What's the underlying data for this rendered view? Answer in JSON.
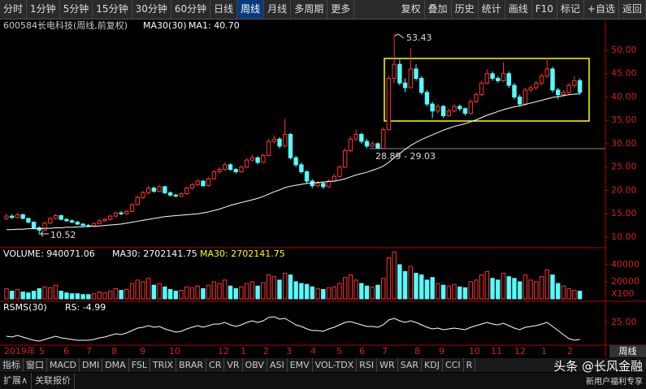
{
  "toolbar": {
    "left": [
      "分时",
      "1分钟",
      "5分钟",
      "15分钟",
      "30分钟",
      "60分钟",
      "日线",
      "周线",
      "月线",
      "多周期",
      "更多"
    ],
    "right": [
      "复权",
      "叠加",
      "历史",
      "统计",
      "画线",
      "F10",
      "标记",
      "+自选",
      "返回"
    ]
  },
  "header": {
    "code": "600584",
    "name": "长电科技(周线,前复权)",
    "ma_label": "MA30(30)",
    "ma1": "MA1: 40.70"
  },
  "price": {
    "ylim": [
      6,
      54.6
    ],
    "yticks": [
      {
        "value": 50,
        "label": "50.00"
      },
      {
        "value": 45,
        "label": "45.00"
      },
      {
        "value": 40,
        "label": "40.00"
      },
      {
        "value": 35,
        "label": "35.00"
      },
      {
        "value": 30,
        "label": "30.00"
      },
      {
        "value": 25,
        "label": "25.00"
      },
      {
        "value": 20,
        "label": "20.00"
      },
      {
        "value": 15,
        "label": "15.00"
      },
      {
        "value": 10,
        "label": "10.00"
      }
    ],
    "candles": [
      [
        14.0,
        15.0,
        13.6,
        14.5
      ],
      [
        14.5,
        14.9,
        13.9,
        14.2
      ],
      [
        14.2,
        15.2,
        14.0,
        14.8
      ],
      [
        14.8,
        15.0,
        13.8,
        14.0
      ],
      [
        14.0,
        14.2,
        13.0,
        13.2
      ],
      [
        13.2,
        13.4,
        11.8,
        12.0
      ],
      [
        12.0,
        12.3,
        10.52,
        11.5
      ],
      [
        11.5,
        13.3,
        11.3,
        13.0
      ],
      [
        13.0,
        14.3,
        12.8,
        14.0
      ],
      [
        14.0,
        15.0,
        13.8,
        14.6
      ],
      [
        14.6,
        14.8,
        13.6,
        13.8
      ],
      [
        13.8,
        14.1,
        13.3,
        13.5
      ],
      [
        13.5,
        13.8,
        13.0,
        13.2
      ],
      [
        13.2,
        13.5,
        12.6,
        12.8
      ],
      [
        12.8,
        13.0,
        12.3,
        12.5
      ],
      [
        12.5,
        12.8,
        12.1,
        12.4
      ],
      [
        12.4,
        13.1,
        12.2,
        12.9
      ],
      [
        12.9,
        13.8,
        12.7,
        13.5
      ],
      [
        13.5,
        14.1,
        13.3,
        13.8
      ],
      [
        13.8,
        14.8,
        13.6,
        14.5
      ],
      [
        14.5,
        15.5,
        14.3,
        15.2
      ],
      [
        15.2,
        15.6,
        14.7,
        15.0
      ],
      [
        15.0,
        15.9,
        14.8,
        15.5
      ],
      [
        15.5,
        17.2,
        15.3,
        17.0
      ],
      [
        17.0,
        18.9,
        16.8,
        18.5
      ],
      [
        18.5,
        19.9,
        18.2,
        19.5
      ],
      [
        19.5,
        21.0,
        19.2,
        20.5
      ],
      [
        20.5,
        20.8,
        19.5,
        19.8
      ],
      [
        19.8,
        21.2,
        19.6,
        20.8
      ],
      [
        20.8,
        21.0,
        19.2,
        19.5
      ],
      [
        19.5,
        19.8,
        18.7,
        19.0
      ],
      [
        19.0,
        19.3,
        18.5,
        18.8
      ],
      [
        18.8,
        19.6,
        18.6,
        19.3
      ],
      [
        19.3,
        20.8,
        19.1,
        20.5
      ],
      [
        20.5,
        21.6,
        20.2,
        21.2
      ],
      [
        21.2,
        22.4,
        21.0,
        22.0
      ],
      [
        22.0,
        22.2,
        20.8,
        21.0
      ],
      [
        21.0,
        22.9,
        20.8,
        22.5
      ],
      [
        22.5,
        24.3,
        22.3,
        24.0
      ],
      [
        24.0,
        25.0,
        23.6,
        24.5
      ],
      [
        24.5,
        26.0,
        24.2,
        25.5
      ],
      [
        25.5,
        25.8,
        24.2,
        24.5
      ],
      [
        24.5,
        24.8,
        23.6,
        24.0
      ],
      [
        24.0,
        25.3,
        23.8,
        25.0
      ],
      [
        25.0,
        26.9,
        24.8,
        26.5
      ],
      [
        26.5,
        27.6,
        26.2,
        27.0
      ],
      [
        27.0,
        27.3,
        25.6,
        26.0
      ],
      [
        26.0,
        27.9,
        25.8,
        27.5
      ],
      [
        27.5,
        31.0,
        27.3,
        30.5
      ],
      [
        30.5,
        31.8,
        30.0,
        31.0
      ],
      [
        31.0,
        31.4,
        29.0,
        29.5
      ],
      [
        29.5,
        35.3,
        29.2,
        32.0
      ],
      [
        32.0,
        32.3,
        26.6,
        27.0
      ],
      [
        27.0,
        27.4,
        25.0,
        25.5
      ],
      [
        25.5,
        26.0,
        23.6,
        24.0
      ],
      [
        24.0,
        24.3,
        21.5,
        22.0
      ],
      [
        22.0,
        22.4,
        20.5,
        21.0
      ],
      [
        21.0,
        22.0,
        20.6,
        21.5
      ],
      [
        21.5,
        21.8,
        20.3,
        20.8
      ],
      [
        20.8,
        22.4,
        20.6,
        22.0
      ],
      [
        22.0,
        23.5,
        21.8,
        23.0
      ],
      [
        23.0,
        25.4,
        22.8,
        25.0
      ],
      [
        25.0,
        29.0,
        24.8,
        28.5
      ],
      [
        28.5,
        31.6,
        28.2,
        31.0
      ],
      [
        31.0,
        33.0,
        30.5,
        32.0
      ],
      [
        32.0,
        32.4,
        30.0,
        30.5
      ],
      [
        30.5,
        31.0,
        29.0,
        29.5
      ],
      [
        29.5,
        30.6,
        29.2,
        30.0
      ],
      [
        30.0,
        30.3,
        28.89,
        29.03
      ],
      [
        29.03,
        33.5,
        29.0,
        33.0
      ],
      [
        33.0,
        44.5,
        32.8,
        44.0
      ],
      [
        44.0,
        53.43,
        43.0,
        47.0
      ],
      [
        47.0,
        48.0,
        42.5,
        43.0
      ],
      [
        43.0,
        44.0,
        41.0,
        42.0
      ],
      [
        42.0,
        50.5,
        41.8,
        46.0
      ],
      [
        46.0,
        47.0,
        43.5,
        44.0
      ],
      [
        44.0,
        44.5,
        40.5,
        41.0
      ],
      [
        41.0,
        41.5,
        38.0,
        38.5
      ],
      [
        38.5,
        39.0,
        35.5,
        37.0
      ],
      [
        37.0,
        38.5,
        36.5,
        38.0
      ],
      [
        38.0,
        38.3,
        35.5,
        36.0
      ],
      [
        36.0,
        37.5,
        35.8,
        37.0
      ],
      [
        37.0,
        38.5,
        36.7,
        38.0
      ],
      [
        38.0,
        38.4,
        37.0,
        37.5
      ],
      [
        37.5,
        37.8,
        36.0,
        36.5
      ],
      [
        36.5,
        39.5,
        36.3,
        39.0
      ],
      [
        39.0,
        41.0,
        38.7,
        40.5
      ],
      [
        40.5,
        43.5,
        40.2,
        43.0
      ],
      [
        43.0,
        46.0,
        42.7,
        45.0
      ],
      [
        45.0,
        45.5,
        43.5,
        44.0
      ],
      [
        44.0,
        44.5,
        43.0,
        43.5
      ],
      [
        43.5,
        47.5,
        43.2,
        45.0
      ],
      [
        45.0,
        45.5,
        42.0,
        42.5
      ],
      [
        42.5,
        43.0,
        39.5,
        40.0
      ],
      [
        40.0,
        40.5,
        38.0,
        38.5
      ],
      [
        38.5,
        42.0,
        38.2,
        41.5
      ],
      [
        41.5,
        42.5,
        41.0,
        42.0
      ],
      [
        42.0,
        43.5,
        41.5,
        43.0
      ],
      [
        43.0,
        45.0,
        42.5,
        44.5
      ],
      [
        44.5,
        48.5,
        44.0,
        46.0
      ],
      [
        46.0,
        46.5,
        41.0,
        41.5
      ],
      [
        41.5,
        42.0,
        39.5,
        40.5
      ],
      [
        40.5,
        41.5,
        40.0,
        41.0
      ],
      [
        41.0,
        43.0,
        40.5,
        42.5
      ],
      [
        42.5,
        44.5,
        42.0,
        43.5
      ],
      [
        43.5,
        44.0,
        40.5,
        41.0
      ]
    ],
    "ma30": [
      11.6,
      11.6,
      11.7,
      11.7,
      11.8,
      11.8,
      11.8,
      11.9,
      11.9,
      12.0,
      12.0,
      12.1,
      12.1,
      12.2,
      12.2,
      12.3,
      12.3,
      12.4,
      12.5,
      12.6,
      12.7,
      12.8,
      13.0,
      13.2,
      13.4,
      13.6,
      13.8,
      14.0,
      14.2,
      14.4,
      14.5,
      14.6,
      14.7,
      14.8,
      14.9,
      15.0,
      15.2,
      15.4,
      15.7,
      16.0,
      16.4,
      16.8,
      17.1,
      17.4,
      17.7,
      18.0,
      18.3,
      18.7,
      19.2,
      19.7,
      20.1,
      20.6,
      20.9,
      21.1,
      21.3,
      21.5,
      21.6,
      21.7,
      21.8,
      21.9,
      22.0,
      22.2,
      22.5,
      22.9,
      23.3,
      23.6,
      23.9,
      24.3,
      24.7,
      25.2,
      26.0,
      27.0,
      27.9,
      28.8,
      29.6,
      30.3,
      30.9,
      31.4,
      31.9,
      32.4,
      32.9,
      33.3,
      33.7,
      34.0,
      34.3,
      34.7,
      35.1,
      35.6,
      36.1,
      36.5,
      36.9,
      37.3,
      37.6,
      37.9,
      38.1,
      38.4,
      38.7,
      39.0,
      39.3,
      39.6,
      39.9,
      40.1,
      40.3,
      40.5,
      40.6,
      40.7
    ],
    "annotations": {
      "high": "53.43",
      "low": "10.52",
      "range": "28.89 - 29.03"
    }
  },
  "volume": {
    "header": [
      "VOLUME: 940071.06",
      "MA30: 2702141.75",
      "MA30: 2702141.75"
    ],
    "ylim": [
      0,
      58000
    ],
    "yticks": [
      20000,
      40000
    ],
    "unit": "X100",
    "values": [
      12000,
      9000,
      11000,
      8000,
      7000,
      9000,
      12000,
      14000,
      13000,
      16000,
      9000,
      7000,
      6000,
      6000,
      5000,
      5000,
      6000,
      8000,
      7000,
      9000,
      12000,
      10000,
      11000,
      18000,
      22000,
      20000,
      24000,
      16000,
      18000,
      14000,
      11000,
      9000,
      10000,
      14000,
      13000,
      15000,
      12000,
      16000,
      20000,
      18000,
      22000,
      15000,
      12000,
      14000,
      18000,
      20000,
      15000,
      19000,
      28000,
      26000,
      22000,
      30000,
      28000,
      20000,
      18000,
      17000,
      14000,
      12000,
      11000,
      13000,
      14000,
      18000,
      25000,
      28000,
      22000,
      18000,
      15000,
      14000,
      16000,
      24000,
      48000,
      55000,
      40000,
      32000,
      38000,
      30000,
      28000,
      22000,
      25000,
      18000,
      16000,
      15000,
      17000,
      14000,
      13000,
      20000,
      22000,
      28000,
      32000,
      24000,
      22000,
      30000,
      26000,
      24000,
      20000,
      28000,
      22000,
      20000,
      26000,
      34000,
      28000,
      18000,
      15000,
      12000,
      10000,
      9000
    ]
  },
  "rsms": {
    "header": [
      "RSMS(30)",
      "RS: -4.99"
    ],
    "ylim": [
      0,
      50
    ],
    "yticks": [
      {
        "value": 25,
        "label": "25.00"
      }
    ],
    "values": [
      8,
      7,
      9,
      7,
      5,
      3,
      2,
      4,
      6,
      8,
      6,
      5,
      4,
      3,
      3,
      3,
      4,
      6,
      7,
      9,
      11,
      10,
      12,
      15,
      18,
      19,
      21,
      19,
      20,
      17,
      15,
      13,
      14,
      17,
      19,
      21,
      19,
      21,
      23,
      23,
      25,
      22,
      20,
      22,
      25,
      27,
      25,
      27,
      31,
      32,
      29,
      30,
      26,
      22,
      20,
      17,
      15,
      15,
      14,
      17,
      19,
      22,
      25,
      26,
      24,
      22,
      20,
      20,
      19,
      22,
      28,
      30,
      27,
      25,
      27,
      25,
      22,
      19,
      17,
      18,
      16,
      17,
      18,
      17,
      16,
      19,
      21,
      23,
      25,
      23,
      22,
      24,
      21,
      18,
      16,
      19,
      20,
      21,
      23,
      25,
      20,
      15,
      10,
      5,
      3,
      4
    ]
  },
  "months": [
    "2019年",
    "5",
    "6",
    "7",
    "8",
    "9",
    "10",
    "12",
    "1",
    "2",
    "3",
    "4",
    "5",
    "6",
    "7",
    "8",
    "9",
    "10",
    "11",
    "12",
    "1",
    "2"
  ],
  "period_tab": "周线",
  "tabs": [
    "指标",
    "窗口",
    "MACD",
    "DMI",
    "DMA",
    "FSL",
    "TRIX",
    "BRAR",
    "CR",
    "VR",
    "OBV",
    "ASI",
    "EMV",
    "VOL-TDX",
    "RSI",
    "WR",
    "SAR",
    "KDJ",
    "CCI",
    "R"
  ],
  "footer": [
    "扩展∧",
    "关联报价"
  ],
  "watermark": {
    "main": "头条 @长风金融",
    "sub": "新用户福利专享"
  }
}
